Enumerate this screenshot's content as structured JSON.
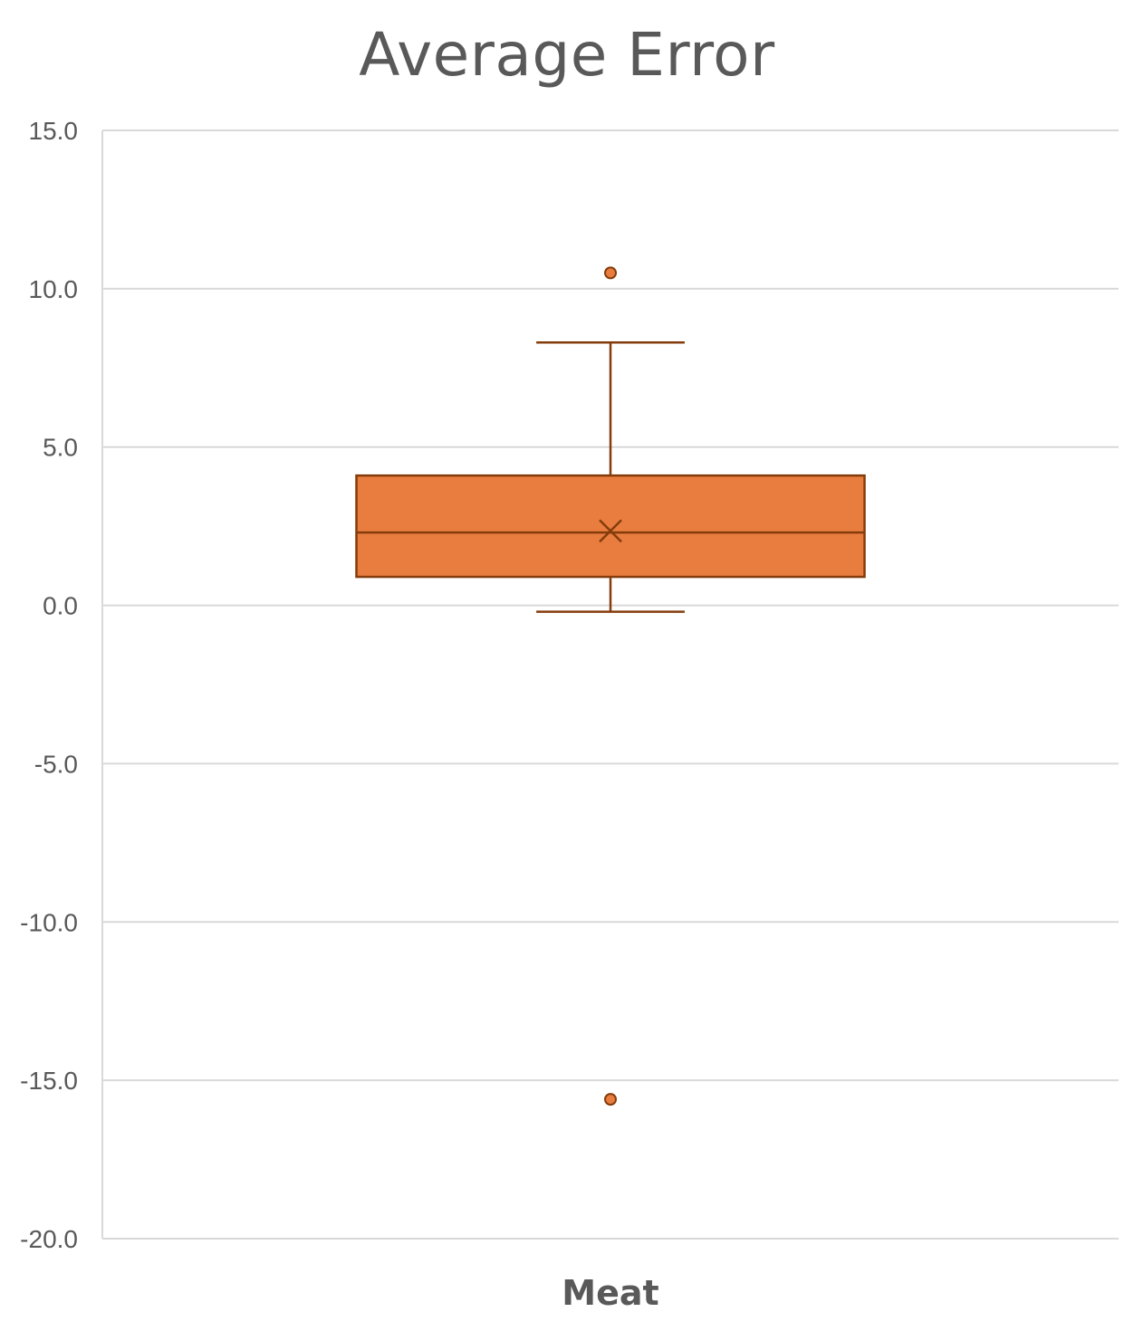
{
  "chart_data": {
    "type": "box",
    "title": "Average Error",
    "xlabel": "",
    "ylabel": "",
    "categories": [
      "Meat"
    ],
    "ylim": [
      -20.0,
      15.0
    ],
    "yticks": [
      "15.0",
      "10.0",
      "5.0",
      "0.0",
      "-5.0",
      "-10.0",
      "-15.0",
      "-20.0"
    ],
    "grid": true,
    "legend": "none",
    "series": [
      {
        "category": "Meat",
        "whisker_low": -0.2,
        "q1": 0.9,
        "median": 2.3,
        "q3": 4.1,
        "whisker_high": 8.3,
        "mean": 2.35,
        "outliers": [
          10.5,
          -15.6
        ]
      }
    ],
    "colors": {
      "box_fill": "#E97D3F",
      "box_stroke": "#843C0C",
      "grid": "#D9D9D9",
      "text": "#595959"
    }
  }
}
